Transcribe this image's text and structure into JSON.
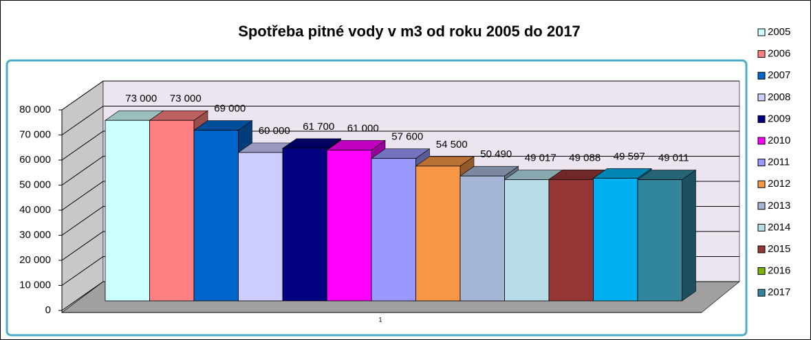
{
  "chart_data": {
    "type": "bar3d",
    "title": "Spotřeba pitné vody v m3 od roku 2005 do 2017",
    "categories": [
      "1"
    ],
    "ylim": [
      0,
      80000
    ],
    "yticks": [
      {
        "value": 0,
        "label": "0"
      },
      {
        "value": 10000,
        "label": "10 000"
      },
      {
        "value": 20000,
        "label": "20 000"
      },
      {
        "value": 30000,
        "label": "30 000"
      },
      {
        "value": 40000,
        "label": "40 000"
      },
      {
        "value": 50000,
        "label": "50 000"
      },
      {
        "value": 60000,
        "label": "60 000"
      },
      {
        "value": 70000,
        "label": "70 000"
      },
      {
        "value": 80000,
        "label": "80 000"
      }
    ],
    "grid": true,
    "legend": "right",
    "series": [
      {
        "name": "2005",
        "color": "#ccffff",
        "values": [
          73000
        ],
        "value_labels": [
          "73 000"
        ]
      },
      {
        "name": "2006",
        "color": "#ff8080",
        "values": [
          73000
        ],
        "value_labels": [
          "73 000"
        ]
      },
      {
        "name": "2007",
        "color": "#0066cc",
        "values": [
          69000
        ],
        "value_labels": [
          "69 000"
        ]
      },
      {
        "name": "2008",
        "color": "#ccccff",
        "values": [
          60000
        ],
        "value_labels": [
          "60 000"
        ]
      },
      {
        "name": "2009",
        "color": "#000080",
        "values": [
          61700
        ],
        "value_labels": [
          "61 700"
        ]
      },
      {
        "name": "2010",
        "color": "#ff00ff",
        "values": [
          61000
        ],
        "value_labels": [
          "61 000"
        ]
      },
      {
        "name": "2011",
        "color": "#9999ff",
        "values": [
          57600
        ],
        "value_labels": [
          "57 600"
        ]
      },
      {
        "name": "2012",
        "color": "#f79646",
        "values": [
          54500
        ],
        "value_labels": [
          "54 500"
        ]
      },
      {
        "name": "2013",
        "color": "#a5b5d5",
        "values": [
          50490
        ],
        "value_labels": [
          "50 490"
        ]
      },
      {
        "name": "2014",
        "color": "#b7dee8",
        "values": [
          49017
        ],
        "value_labels": [
          "49 017"
        ]
      },
      {
        "name": "2015",
        "color": "#953735",
        "values": [
          49088
        ],
        "value_labels": [
          "49 088"
        ]
      },
      {
        "name": "2016",
        "color": "#00b0f0",
        "legend_color": "#77b300",
        "values": [
          49597
        ],
        "value_labels": [
          "49 597"
        ]
      },
      {
        "name": "2017",
        "color": "#31859c",
        "values": [
          49011
        ],
        "value_labels": [
          "49 011"
        ]
      }
    ]
  }
}
